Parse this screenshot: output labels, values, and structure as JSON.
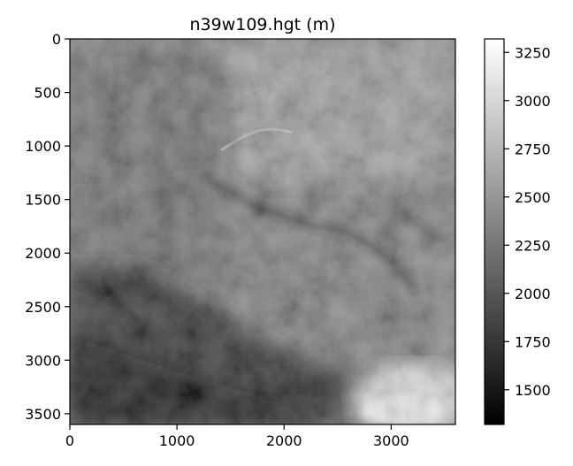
{
  "chart_data": {
    "type": "heatmap",
    "title": "n39w109.hgt (m)",
    "xlabel": "",
    "ylabel": "",
    "xlim": [
      0,
      3600
    ],
    "ylim": [
      3600,
      0
    ],
    "x_ticks": [
      0,
      1000,
      2000,
      3000
    ],
    "y_ticks": [
      0,
      500,
      1000,
      1500,
      2000,
      2500,
      3000,
      3500
    ],
    "colormap": "gray",
    "colorbar": {
      "range": [
        1320,
        3320
      ],
      "ticks": [
        1500,
        1750,
        2000,
        2250,
        2500,
        2750,
        3000,
        3250
      ]
    },
    "grid": false,
    "description_values": {
      "low_elevation_band": "dark diagonal valley from lower-left to center-bottom",
      "high_elevation_area": "bright region at bottom-right"
    }
  },
  "colors": {
    "axis": "#000000",
    "background": "#ffffff"
  }
}
